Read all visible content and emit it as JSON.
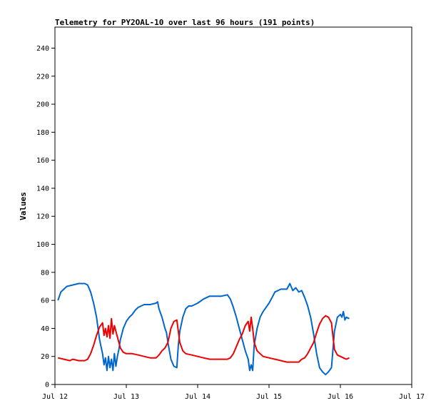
{
  "chart_data": {
    "type": "line",
    "title": "Telemetry for PY2OAL-10 over last 96 hours (191 points)",
    "xlabel": "",
    "ylabel": "Values",
    "xlim": [
      "Jul 12",
      "Jul 17"
    ],
    "ylim": [
      0,
      255
    ],
    "x_ticks": [
      "Jul 12",
      "Jul 13",
      "Jul 14",
      "Jul 15",
      "Jul 16",
      "Jul 17"
    ],
    "y_ticks": [
      0,
      20,
      40,
      60,
      80,
      100,
      120,
      140,
      160,
      180,
      200,
      220,
      240
    ],
    "grid": false,
    "legend": "none",
    "series_colors": [
      "#0066cc",
      "#ee0000"
    ],
    "series": [
      {
        "color": "#0066cc",
        "points": [
          [
            "Jul 12 01:00",
            60
          ],
          [
            "Jul 12 02:00",
            66
          ],
          [
            "Jul 12 03:00",
            68
          ],
          [
            "Jul 12 04:00",
            70
          ],
          [
            "Jul 12 06:00",
            71
          ],
          [
            "Jul 12 08:00",
            72
          ],
          [
            "Jul 12 10:00",
            72
          ],
          [
            "Jul 12 11:00",
            71
          ],
          [
            "Jul 12 12:00",
            66
          ],
          [
            "Jul 12 13:00",
            58
          ],
          [
            "Jul 12 14:00",
            48
          ],
          [
            "Jul 12 15:00",
            32
          ],
          [
            "Jul 12 16:00",
            22
          ],
          [
            "Jul 12 16:30",
            14
          ],
          [
            "Jul 12 17:00",
            19
          ],
          [
            "Jul 12 17:30",
            10
          ],
          [
            "Jul 12 18:00",
            20
          ],
          [
            "Jul 12 18:30",
            12
          ],
          [
            "Jul 12 19:00",
            18
          ],
          [
            "Jul 12 19:30",
            10
          ],
          [
            "Jul 12 20:00",
            22
          ],
          [
            "Jul 12 20:30",
            13
          ],
          [
            "Jul 12 21:00",
            20
          ],
          [
            "Jul 12 21:30",
            25
          ],
          [
            "Jul 12 22:00",
            32
          ],
          [
            "Jul 12 23:00",
            40
          ],
          [
            "Jul 13 00:00",
            45
          ],
          [
            "Jul 13 01:00",
            48
          ],
          [
            "Jul 13 02:00",
            50
          ],
          [
            "Jul 13 03:00",
            53
          ],
          [
            "Jul 13 04:00",
            55
          ],
          [
            "Jul 13 06:00",
            57
          ],
          [
            "Jul 13 08:00",
            57
          ],
          [
            "Jul 13 10:00",
            58
          ],
          [
            "Jul 13 10:30",
            59
          ],
          [
            "Jul 13 11:00",
            54
          ],
          [
            "Jul 13 12:00",
            48
          ],
          [
            "Jul 13 13:00",
            40
          ],
          [
            "Jul 13 13:30",
            37
          ],
          [
            "Jul 13 14:00",
            30
          ],
          [
            "Jul 13 15:00",
            18
          ],
          [
            "Jul 13 16:00",
            13
          ],
          [
            "Jul 13 17:00",
            12
          ],
          [
            "Jul 13 17:30",
            28
          ],
          [
            "Jul 13 18:00",
            38
          ],
          [
            "Jul 13 19:00",
            48
          ],
          [
            "Jul 13 20:00",
            54
          ],
          [
            "Jul 13 21:00",
            56
          ],
          [
            "Jul 13 22:00",
            56
          ],
          [
            "Jul 14 00:00",
            58
          ],
          [
            "Jul 14 02:00",
            61
          ],
          [
            "Jul 14 04:00",
            63
          ],
          [
            "Jul 14 06:00",
            63
          ],
          [
            "Jul 14 08:00",
            63
          ],
          [
            "Jul 14 10:00",
            64
          ],
          [
            "Jul 14 11:00",
            61
          ],
          [
            "Jul 14 12:00",
            55
          ],
          [
            "Jul 14 13:00",
            48
          ],
          [
            "Jul 14 14:00",
            40
          ],
          [
            "Jul 14 15:00",
            32
          ],
          [
            "Jul 14 16:00",
            24
          ],
          [
            "Jul 14 17:00",
            18
          ],
          [
            "Jul 14 17:30",
            10
          ],
          [
            "Jul 14 18:00",
            14
          ],
          [
            "Jul 14 18:30",
            10
          ],
          [
            "Jul 14 19:00",
            28
          ],
          [
            "Jul 14 20:00",
            40
          ],
          [
            "Jul 14 21:00",
            48
          ],
          [
            "Jul 14 22:00",
            52
          ],
          [
            "Jul 15 00:00",
            58
          ],
          [
            "Jul 15 01:00",
            62
          ],
          [
            "Jul 15 02:00",
            66
          ],
          [
            "Jul 15 04:00",
            68
          ],
          [
            "Jul 15 06:00",
            68
          ],
          [
            "Jul 15 07:00",
            72
          ],
          [
            "Jul 15 08:00",
            67
          ],
          [
            "Jul 15 09:00",
            69
          ],
          [
            "Jul 15 10:00",
            66
          ],
          [
            "Jul 15 11:00",
            67
          ],
          [
            "Jul 15 12:00",
            62
          ],
          [
            "Jul 15 13:00",
            56
          ],
          [
            "Jul 15 14:00",
            48
          ],
          [
            "Jul 15 15:00",
            36
          ],
          [
            "Jul 15 16:00",
            22
          ],
          [
            "Jul 15 17:00",
            12
          ],
          [
            "Jul 15 18:00",
            9
          ],
          [
            "Jul 15 19:00",
            7
          ],
          [
            "Jul 15 20:00",
            9
          ],
          [
            "Jul 15 21:00",
            12
          ],
          [
            "Jul 15 22:00",
            38
          ],
          [
            "Jul 15 23:00",
            48
          ],
          [
            "Jul 16 00:00",
            50
          ],
          [
            "Jul 16 00:30",
            48
          ],
          [
            "Jul 16 01:00",
            52
          ],
          [
            "Jul 16 01:30",
            46
          ],
          [
            "Jul 16 02:00",
            48
          ],
          [
            "Jul 16 03:00",
            47
          ]
        ]
      },
      {
        "color": "#ee0000",
        "points": [
          [
            "Jul 12 01:00",
            19
          ],
          [
            "Jul 12 03:00",
            18
          ],
          [
            "Jul 12 05:00",
            17
          ],
          [
            "Jul 12 06:00",
            18
          ],
          [
            "Jul 12 08:00",
            17
          ],
          [
            "Jul 12 10:00",
            17
          ],
          [
            "Jul 12 11:00",
            18
          ],
          [
            "Jul 12 12:00",
            22
          ],
          [
            "Jul 12 13:00",
            28
          ],
          [
            "Jul 12 14:00",
            35
          ],
          [
            "Jul 12 15:00",
            41
          ],
          [
            "Jul 12 16:00",
            44
          ],
          [
            "Jul 12 16:30",
            35
          ],
          [
            "Jul 12 17:00",
            40
          ],
          [
            "Jul 12 17:30",
            34
          ],
          [
            "Jul 12 18:00",
            42
          ],
          [
            "Jul 12 18:30",
            33
          ],
          [
            "Jul 12 19:00",
            47
          ],
          [
            "Jul 12 19:30",
            36
          ],
          [
            "Jul 12 20:00",
            42
          ],
          [
            "Jul 12 21:00",
            34
          ],
          [
            "Jul 12 22:00",
            26
          ],
          [
            "Jul 12 23:00",
            23
          ],
          [
            "Jul 13 00:00",
            22
          ],
          [
            "Jul 13 02:00",
            22
          ],
          [
            "Jul 13 04:00",
            21
          ],
          [
            "Jul 13 06:00",
            20
          ],
          [
            "Jul 13 08:00",
            19
          ],
          [
            "Jul 13 10:00",
            19
          ],
          [
            "Jul 13 11:00",
            21
          ],
          [
            "Jul 13 12:00",
            24
          ],
          [
            "Jul 13 13:00",
            26
          ],
          [
            "Jul 13 14:00",
            30
          ],
          [
            "Jul 13 15:00",
            40
          ],
          [
            "Jul 13 16:00",
            45
          ],
          [
            "Jul 13 17:00",
            46
          ],
          [
            "Jul 13 18:00",
            30
          ],
          [
            "Jul 13 19:00",
            24
          ],
          [
            "Jul 13 20:00",
            22
          ],
          [
            "Jul 13 22:00",
            21
          ],
          [
            "Jul 14 00:00",
            20
          ],
          [
            "Jul 14 02:00",
            19
          ],
          [
            "Jul 14 04:00",
            18
          ],
          [
            "Jul 14 06:00",
            18
          ],
          [
            "Jul 14 08:00",
            18
          ],
          [
            "Jul 14 10:00",
            18
          ],
          [
            "Jul 14 11:00",
            19
          ],
          [
            "Jul 14 12:00",
            22
          ],
          [
            "Jul 14 13:00",
            27
          ],
          [
            "Jul 14 14:00",
            32
          ],
          [
            "Jul 14 15:00",
            36
          ],
          [
            "Jul 14 16:00",
            42
          ],
          [
            "Jul 14 17:00",
            45
          ],
          [
            "Jul 14 17:30",
            38
          ],
          [
            "Jul 14 18:00",
            48
          ],
          [
            "Jul 14 18:30",
            40
          ],
          [
            "Jul 14 19:00",
            30
          ],
          [
            "Jul 14 20:00",
            24
          ],
          [
            "Jul 14 21:00",
            22
          ],
          [
            "Jul 14 22:00",
            20
          ],
          [
            "Jul 15 00:00",
            19
          ],
          [
            "Jul 15 02:00",
            18
          ],
          [
            "Jul 15 04:00",
            17
          ],
          [
            "Jul 15 06:00",
            16
          ],
          [
            "Jul 15 08:00",
            16
          ],
          [
            "Jul 15 10:00",
            16
          ],
          [
            "Jul 15 11:00",
            18
          ],
          [
            "Jul 15 12:00",
            19
          ],
          [
            "Jul 15 13:00",
            22
          ],
          [
            "Jul 15 14:00",
            26
          ],
          [
            "Jul 15 15:00",
            30
          ],
          [
            "Jul 15 16:00",
            37
          ],
          [
            "Jul 15 17:00",
            43
          ],
          [
            "Jul 15 18:00",
            47
          ],
          [
            "Jul 15 19:00",
            49
          ],
          [
            "Jul 15 20:00",
            48
          ],
          [
            "Jul 15 21:00",
            44
          ],
          [
            "Jul 15 22:00",
            25
          ],
          [
            "Jul 15 23:00",
            21
          ],
          [
            "Jul 16 00:00",
            20
          ],
          [
            "Jul 16 01:00",
            19
          ],
          [
            "Jul 16 02:00",
            18
          ],
          [
            "Jul 16 03:00",
            19
          ]
        ]
      }
    ]
  }
}
